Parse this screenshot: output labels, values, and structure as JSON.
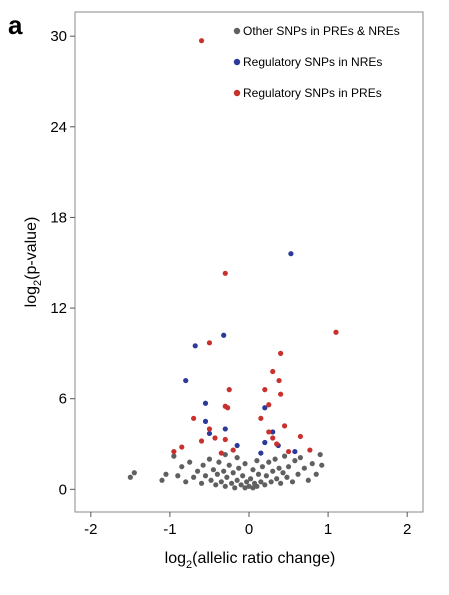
{
  "chart_data": {
    "type": "scatter",
    "panel_label": "a",
    "x_label": {
      "text": "log",
      "sub": "2",
      "rest": "(allelic ratio change)"
    },
    "y_label": {
      "text": "log",
      "sub": "2",
      "rest": "(p-value)"
    },
    "xlim": [
      -2.2,
      2.2
    ],
    "xticks": [
      -2,
      -1,
      0,
      1,
      2
    ],
    "ylim": [
      -1.5,
      31.6
    ],
    "yticks": [
      0,
      6,
      12,
      18,
      24,
      30
    ],
    "legend": "top-right",
    "series": [
      {
        "name": "Other SNPs in PREs & NREs",
        "color": "#606060",
        "x": [
          -1.5,
          -1.45,
          -1.1,
          -1.05,
          -0.95,
          -0.9,
          -0.85,
          -0.8,
          -0.75,
          -0.7,
          -0.65,
          -0.6,
          -0.58,
          -0.55,
          -0.5,
          -0.48,
          -0.45,
          -0.42,
          -0.4,
          -0.38,
          -0.35,
          -0.32,
          -0.3,
          -0.28,
          -0.25,
          -0.22,
          -0.2,
          -0.18,
          -0.15,
          -0.13,
          -0.1,
          -0.08,
          -0.05,
          -0.03,
          0,
          0.02,
          0.05,
          0.07,
          0.1,
          0.12,
          0.15,
          0.17,
          0.2,
          0.22,
          0.25,
          0.28,
          0.3,
          0.33,
          0.35,
          0.38,
          0.4,
          0.43,
          0.45,
          0.48,
          0.5,
          0.55,
          0.58,
          0.62,
          0.65,
          0.7,
          0.75,
          0.8,
          0.85,
          0.9,
          0.92,
          -0.3,
          -0.15,
          0.05,
          -0.05,
          0.1
        ],
        "y": [
          0.8,
          1.1,
          0.6,
          1.0,
          2.2,
          0.9,
          1.5,
          0.5,
          1.8,
          0.8,
          1.2,
          0.4,
          1.6,
          0.9,
          2.0,
          0.6,
          1.3,
          0.3,
          1.0,
          1.8,
          0.5,
          1.2,
          0.2,
          0.8,
          1.6,
          0.4,
          1.1,
          0.1,
          0.6,
          1.4,
          0.3,
          0.9,
          0.1,
          0.5,
          0.2,
          0.7,
          0.1,
          0.4,
          0.2,
          1.0,
          0.5,
          1.5,
          0.3,
          0.9,
          1.8,
          0.5,
          1.2,
          2.0,
          0.7,
          1.4,
          0.4,
          1.1,
          2.2,
          0.8,
          1.5,
          0.5,
          1.9,
          1.0,
          2.1,
          1.4,
          0.6,
          1.7,
          1.0,
          2.3,
          1.6,
          2.3,
          2.1,
          1.3,
          1.7,
          1.9
        ]
      },
      {
        "name": "Regulatory SNPs in NREs",
        "color": "#2b3a9a",
        "x": [
          0.53,
          -0.32,
          -0.68,
          -0.8,
          -0.55,
          -0.55,
          0.2,
          -0.3,
          0.3,
          -0.5,
          0.37,
          0.2,
          -0.15,
          0.15,
          0.58
        ],
        "y": [
          15.6,
          10.2,
          9.5,
          7.2,
          5.7,
          4.5,
          5.4,
          4.0,
          3.8,
          3.7,
          2.9,
          3.1,
          2.9,
          2.4,
          2.5
        ]
      },
      {
        "name": "Regulatory SNPs in PREs",
        "color": "#c8312e",
        "x": [
          -0.6,
          -0.3,
          1.1,
          -0.5,
          0.4,
          0.3,
          0.38,
          -0.25,
          0.2,
          0.4,
          -0.7,
          -0.3,
          -0.27,
          0.25,
          0.15,
          0.45,
          -0.5,
          -0.43,
          -0.6,
          -0.85,
          -0.3,
          -0.2,
          0.25,
          0.3,
          0.35,
          0.5,
          0.77,
          0.65,
          -0.95,
          -0.35
        ],
        "y": [
          29.7,
          14.3,
          10.4,
          9.7,
          9.0,
          7.8,
          7.2,
          6.6,
          6.6,
          6.3,
          4.7,
          5.5,
          5.4,
          5.6,
          4.7,
          4.2,
          4.0,
          3.4,
          3.2,
          2.8,
          3.3,
          2.6,
          3.8,
          3.4,
          3.0,
          2.5,
          2.6,
          3.5,
          2.5,
          2.4
        ]
      }
    ]
  }
}
